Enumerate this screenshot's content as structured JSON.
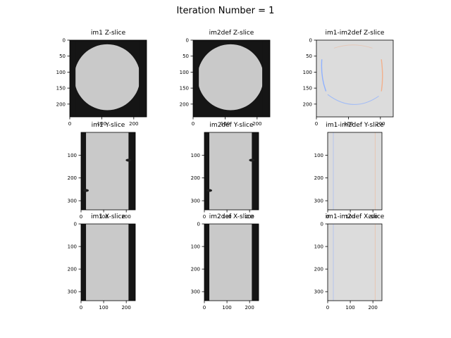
{
  "figure": {
    "title": "Iteration Number = 1"
  },
  "colors": {
    "panel_bg": "#151515",
    "sample": "#c9c9c9",
    "hole": "#1f1f1f",
    "diff_bg": "#dcdcdc",
    "diff_blue": "#8fb1ff",
    "diff_red": "#f2b08c",
    "axis": "#000000"
  },
  "chart_data": [
    {
      "type": "image",
      "title": "im1 Z-slice",
      "xlim": [
        0,
        240
      ],
      "ylim": [
        240,
        0
      ],
      "xticks": [
        0,
        100,
        200
      ],
      "yticks": [
        0,
        50,
        100,
        150,
        200
      ],
      "content": "circle"
    },
    {
      "type": "image",
      "title": "im2def Z-slice",
      "xlim": [
        0,
        240
      ],
      "ylim": [
        240,
        0
      ],
      "xticks": [
        0,
        100,
        200
      ],
      "yticks": [
        0,
        50,
        100,
        150,
        200
      ],
      "content": "circle"
    },
    {
      "type": "image",
      "title": "im1-im2def Z-slice",
      "xlim": [
        0,
        240
      ],
      "ylim": [
        240,
        0
      ],
      "xticks": [
        0,
        100,
        200
      ],
      "yticks": [
        0,
        50,
        100,
        150,
        200
      ],
      "content": "diff"
    },
    {
      "type": "image",
      "title": "im1 Y-slice",
      "xlim": [
        0,
        240
      ],
      "ylim": [
        340,
        0
      ],
      "xticks": [
        0,
        100,
        200
      ],
      "yticks": [
        100,
        200,
        300
      ],
      "content": "column-holes"
    },
    {
      "type": "image",
      "title": "im2def Y-slice",
      "xlim": [
        0,
        240
      ],
      "ylim": [
        340,
        0
      ],
      "xticks": [
        0,
        100,
        200
      ],
      "yticks": [
        100,
        200,
        300
      ],
      "content": "column-holes"
    },
    {
      "type": "image",
      "title": "im1-im2def Y-slice",
      "xlim": [
        0,
        240
      ],
      "ylim": [
        340,
        0
      ],
      "xticks": [
        0,
        100,
        200
      ],
      "yticks": [
        100,
        200,
        300
      ],
      "content": "diff"
    },
    {
      "type": "image",
      "title": "im1 X-slice",
      "xlim": [
        0,
        240
      ],
      "ylim": [
        340,
        0
      ],
      "xticks": [
        0,
        100,
        200
      ],
      "yticks": [
        0,
        100,
        200,
        300
      ],
      "content": "column"
    },
    {
      "type": "image",
      "title": "im2def X-slice",
      "xlim": [
        0,
        240
      ],
      "ylim": [
        340,
        0
      ],
      "xticks": [
        0,
        100,
        200
      ],
      "yticks": [
        0,
        100,
        200,
        300
      ],
      "content": "column"
    },
    {
      "type": "image",
      "title": "im1-im2def X-slice",
      "xlim": [
        0,
        240
      ],
      "ylim": [
        340,
        0
      ],
      "xticks": [
        0,
        100,
        200
      ],
      "yticks": [
        0,
        100,
        200,
        300
      ],
      "content": "diff"
    }
  ]
}
